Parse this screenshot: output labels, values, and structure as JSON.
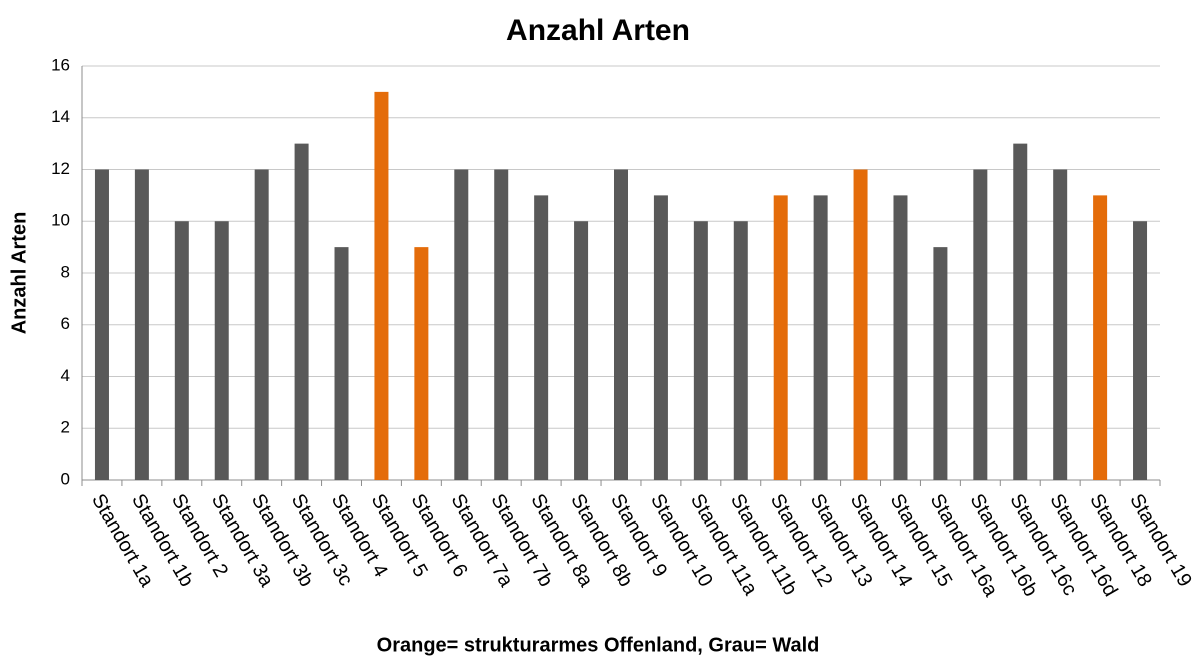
{
  "chart_data": {
    "type": "bar",
    "title": "Anzahl Arten",
    "y_label": "Anzahl Arten",
    "x_label": "Orange= strukturarmes Offenland, Grau= Wald",
    "categories": [
      "Standort 1a",
      "Standort 1b",
      "Standort 2",
      "Standort 3a",
      "Standort 3b",
      "Standort 3c",
      "Standort 4",
      "Standort 5",
      "Standort 6",
      "Standort 7a",
      "Standort 7b",
      "Standort 8a",
      "Standort 8b",
      "Standort 9",
      "Standort 10",
      "Standort 11a",
      "Standort 11b",
      "Standort 12",
      "Standort 13",
      "Standort 14",
      "Standort 15",
      "Standort 16a",
      "Standort 16b",
      "Standort 16c",
      "Standort 16d",
      "Standort 18",
      "Standort 19"
    ],
    "values": [
      12,
      12,
      10,
      10,
      12,
      13,
      9,
      15,
      9,
      12,
      12,
      11,
      10,
      12,
      11,
      10,
      10,
      11,
      11,
      12,
      11,
      9,
      12,
      13,
      12,
      11,
      10
    ],
    "colors": [
      "#595959",
      "#595959",
      "#595959",
      "#595959",
      "#595959",
      "#595959",
      "#595959",
      "#e46c0a",
      "#e46c0a",
      "#595959",
      "#595959",
      "#595959",
      "#595959",
      "#595959",
      "#595959",
      "#595959",
      "#595959",
      "#e46c0a",
      "#595959",
      "#e46c0a",
      "#595959",
      "#595959",
      "#595959",
      "#595959",
      "#595959",
      "#e46c0a",
      "#595959"
    ],
    "ylim": [
      0,
      16
    ],
    "yticks": [
      0,
      2,
      4,
      6,
      8,
      10,
      12,
      14,
      16
    ],
    "grid": true
  }
}
